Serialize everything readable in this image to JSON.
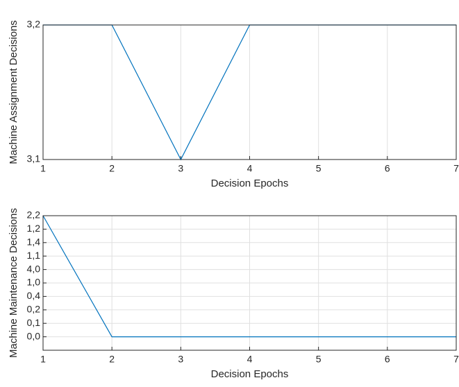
{
  "chart_data": [
    {
      "type": "line",
      "x_label": "Decision Epochs",
      "y_label": "Machine Assignment Decisions",
      "x": [
        1,
        2,
        3,
        4,
        5,
        6,
        7
      ],
      "xlim": [
        1,
        7
      ],
      "xticks": [
        1,
        2,
        3,
        4,
        5,
        6,
        7
      ],
      "ylim": [
        0,
        1
      ],
      "yticks": [
        {
          "value": 0,
          "label": "3,1"
        },
        {
          "value": 1,
          "label": "3,2"
        }
      ],
      "series": [
        {
          "color": "#0072bd",
          "values": [
            1,
            1,
            0,
            1,
            1,
            1,
            1
          ]
        }
      ],
      "grid": true
    },
    {
      "type": "line",
      "x_label": "Decision Epochs",
      "y_label": "Machine Maintenance Decisions",
      "x": [
        1,
        2,
        3,
        4,
        5,
        6,
        7
      ],
      "xlim": [
        1,
        7
      ],
      "xticks": [
        1,
        2,
        3,
        4,
        5,
        6,
        7
      ],
      "ylim": [
        -1,
        9
      ],
      "yticks": [
        {
          "value": 0,
          "label": "0,0"
        },
        {
          "value": 1,
          "label": "0,1"
        },
        {
          "value": 2,
          "label": "0,2"
        },
        {
          "value": 3,
          "label": "0,4"
        },
        {
          "value": 4,
          "label": "1,0"
        },
        {
          "value": 5,
          "label": "4,0"
        },
        {
          "value": 6,
          "label": "1,1"
        },
        {
          "value": 7,
          "label": "1,4"
        },
        {
          "value": 8,
          "label": "1,2"
        },
        {
          "value": 9,
          "label": "2,2"
        }
      ],
      "series": [
        {
          "color": "#0072bd",
          "values": [
            9,
            0,
            0,
            0,
            0,
            0,
            0
          ]
        }
      ],
      "grid": true
    }
  ]
}
